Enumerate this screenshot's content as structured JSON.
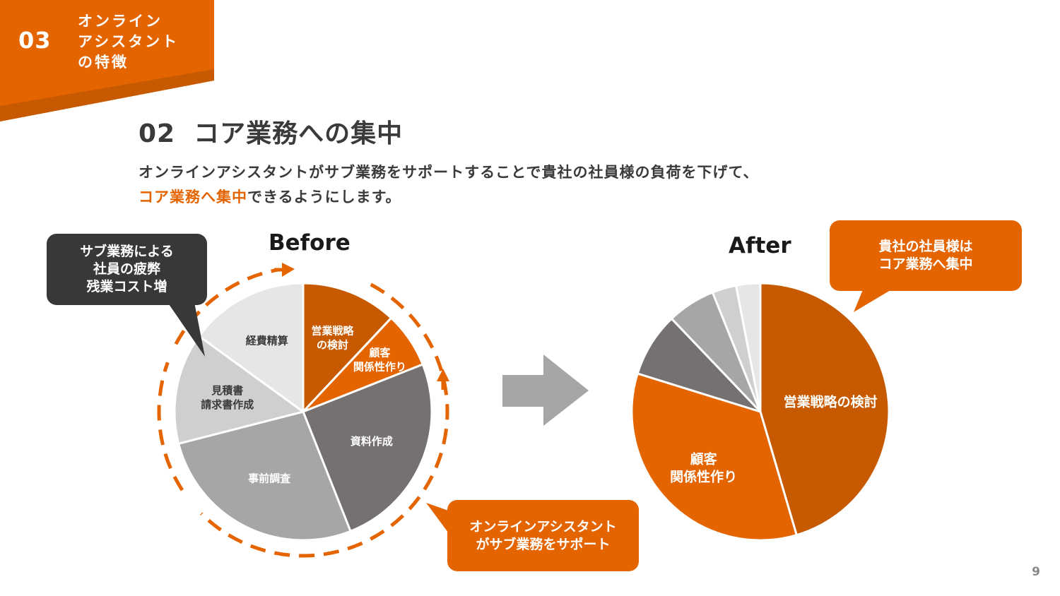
{
  "section": {
    "number": "03",
    "label_lines": [
      "オンライン",
      "アシスタント",
      "の特徴"
    ]
  },
  "heading": {
    "number": "02",
    "title": "コア業務への集中"
  },
  "lead": {
    "line1": "オンラインアシスタントがサブ業務をサポートすることで貴社の社員様の負荷を下げて、",
    "line2_highlight": "コア業務へ集中",
    "line2_rest": "できるようにします。"
  },
  "callouts": {
    "before_burden": [
      "サブ業務による",
      "社員の疲弊",
      "残業コスト増"
    ],
    "assistant_support": [
      "オンラインアシスタント",
      "がサブ業務をサポート"
    ],
    "after_focus": [
      "貴社の社員様は",
      "コア業務へ集中"
    ]
  },
  "colors": {
    "accent": "#e46400",
    "accent_dark": "#c75a00",
    "dark": "#383838"
  },
  "page_number": "9",
  "chart_data": [
    {
      "type": "pie",
      "title": "Before",
      "slices": [
        {
          "label": "営業戦略の検討",
          "label_lines": [
            "営業戦略",
            "の検討"
          ],
          "value": 12,
          "color": "#c75a00",
          "text_color": "#ffffff"
        },
        {
          "label": "顧客関係性作り",
          "label_lines": [
            "顧客",
            "関係性作り"
          ],
          "value": 7,
          "color": "#e46400",
          "text_color": "#ffffff"
        },
        {
          "label": "資料作成",
          "label_lines": [
            "資料作成"
          ],
          "value": 25,
          "color": "#767171",
          "text_color": "#ffffff"
        },
        {
          "label": "事前調査",
          "label_lines": [
            "事前調査"
          ],
          "value": 27,
          "color": "#a6a6a6",
          "text_color": "#ffffff"
        },
        {
          "label": "見積書請求書作成",
          "label_lines": [
            "見積書",
            "請求書作成"
          ],
          "value": 14,
          "color": "#d0cece",
          "text_color": "#3a3a3a"
        },
        {
          "label": "経費精算",
          "label_lines": [
            "経費精算"
          ],
          "value": 15,
          "color": "#e7e6e6",
          "text_color": "#3a3a3a"
        }
      ]
    },
    {
      "type": "pie",
      "title": "After",
      "slices": [
        {
          "label": "営業戦略の検討",
          "label_lines": [
            "営業戦略の検討"
          ],
          "value": 45,
          "color": "#c75a00",
          "text_color": "#ffffff"
        },
        {
          "label": "顧客関係性作り",
          "label_lines": [
            "顧客",
            "関係性作り"
          ],
          "value": 34,
          "color": "#e46400",
          "text_color": "#ffffff"
        },
        {
          "label": "",
          "label_lines": [],
          "value": 8,
          "color": "#767171",
          "text_color": "#ffffff"
        },
        {
          "label": "",
          "label_lines": [],
          "value": 6,
          "color": "#a6a6a6",
          "text_color": "#ffffff"
        },
        {
          "label": "",
          "label_lines": [],
          "value": 3,
          "color": "#d0cece",
          "text_color": "#3a3a3a"
        },
        {
          "label": "",
          "label_lines": [],
          "value": 3,
          "color": "#e7e6e6",
          "text_color": "#3a3a3a"
        }
      ]
    }
  ]
}
